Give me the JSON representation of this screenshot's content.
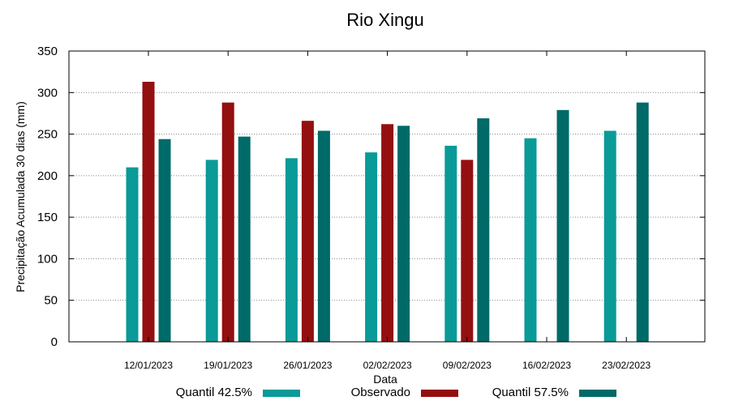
{
  "chart_data": {
    "type": "bar",
    "title": "Rio Xingu",
    "xlabel": "Data",
    "ylabel": "Precipitação Acumulada 30 dias (mm)",
    "ylim": [
      0,
      350
    ],
    "yticks": [
      0,
      50,
      100,
      150,
      200,
      250,
      300,
      350
    ],
    "grid": true,
    "legend_position": "bottom",
    "categories": [
      "12/01/2023",
      "19/01/2023",
      "26/01/2023",
      "02/02/2023",
      "09/02/2023",
      "16/02/2023",
      "23/02/2023"
    ],
    "series": [
      {
        "name": "Quantil 42.5%",
        "color": "#0a9a98",
        "values": [
          210,
          219,
          221,
          228,
          236,
          245,
          254
        ]
      },
      {
        "name": "Observado",
        "color": "#940f10",
        "values": [
          313,
          288,
          266,
          262,
          219,
          null,
          null
        ]
      },
      {
        "name": "Quantil 57.5%",
        "color": "#006a68",
        "values": [
          244,
          247,
          254,
          260,
          269,
          279,
          288
        ]
      }
    ]
  }
}
